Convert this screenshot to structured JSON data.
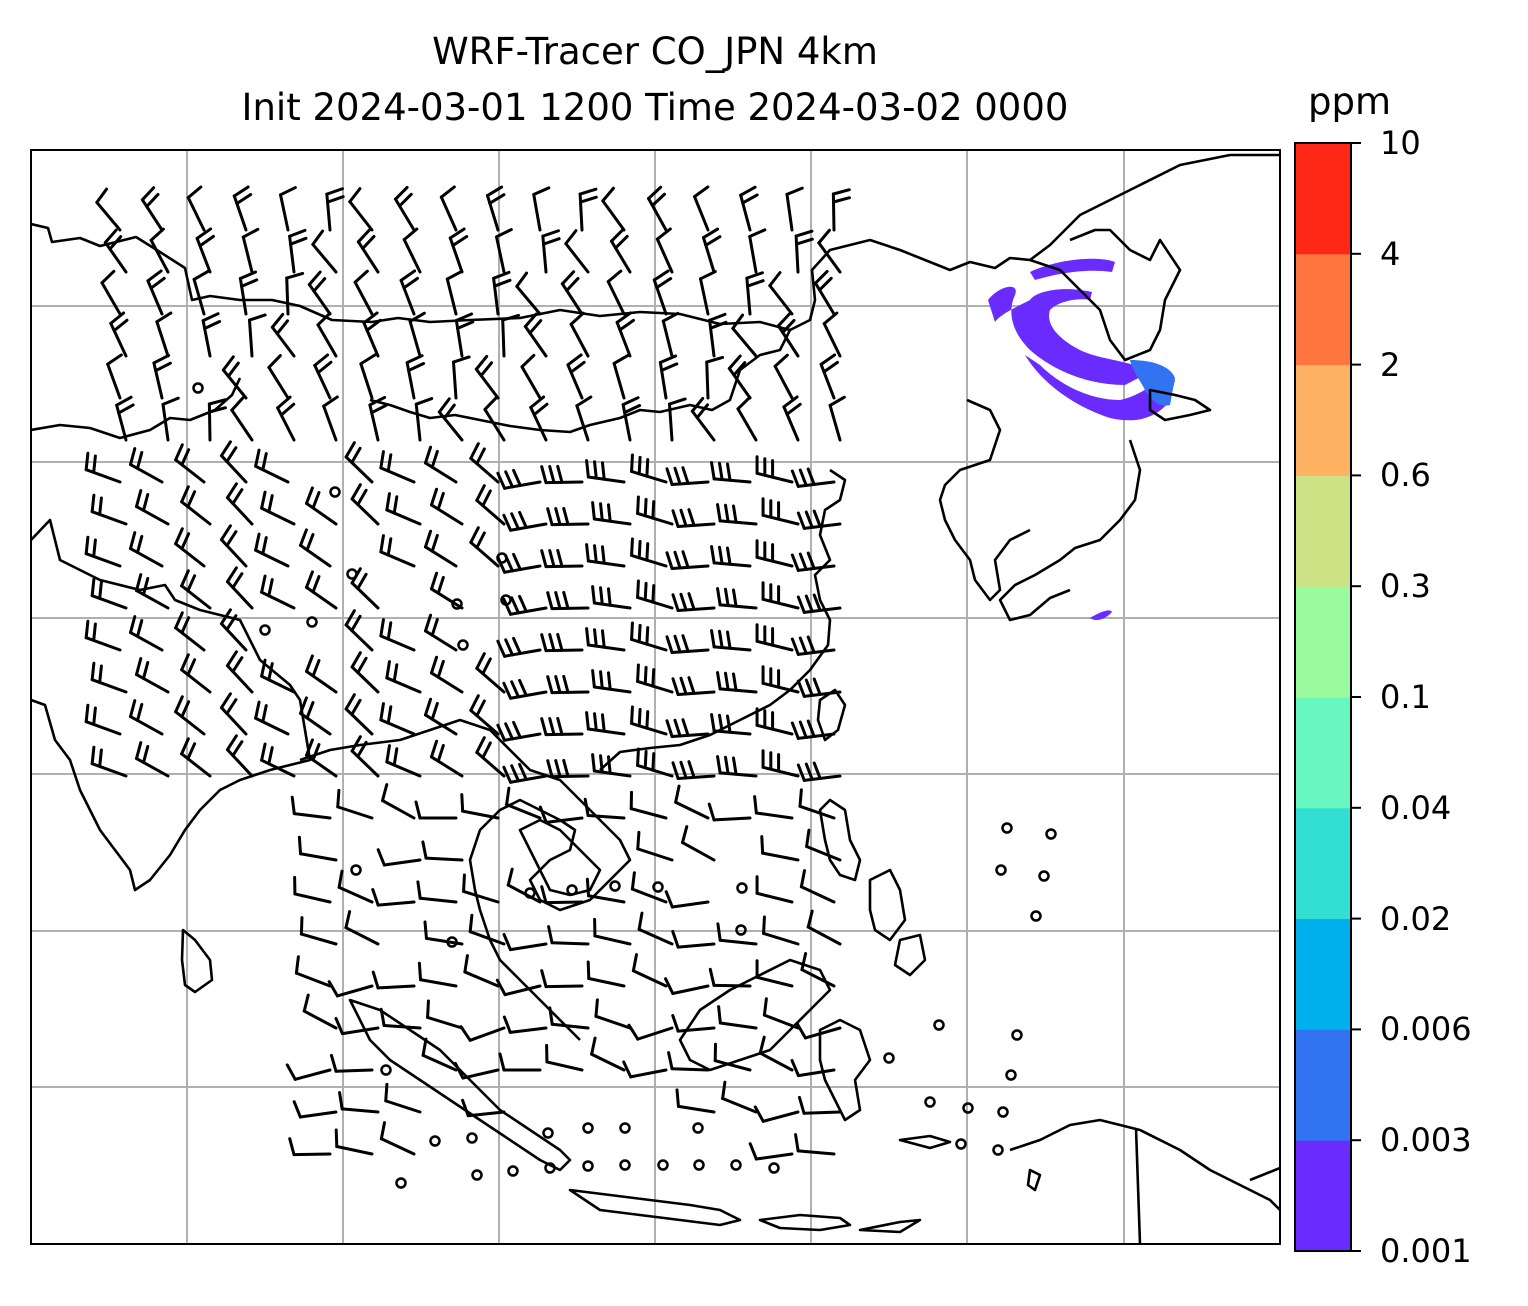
{
  "title": {
    "line1": "WRF-Tracer CO_JPN 4km",
    "line2": "Init 2024-03-01 1200 Time 2024-03-02 0000"
  },
  "colorbar": {
    "unit": "ppm",
    "levels": [
      "0.001",
      "0.003",
      "0.006",
      "0.02",
      "0.04",
      "0.1",
      "0.3",
      "0.6",
      "2",
      "4",
      "10"
    ],
    "colors": [
      "#6a2bff",
      "#3273f2",
      "#00b0ec",
      "#33dfd3",
      "#68f8bf",
      "#9bfa9d",
      "#cce285",
      "#fdb264",
      "#ff7540",
      "#ff2816"
    ]
  },
  "map": {
    "features": [
      "coastlines",
      "borders",
      "gridlines",
      "wind-barbs",
      "co-tracer-plume"
    ],
    "gridline_color": "#b0b0b0",
    "plume_colors": [
      "#6a2bff",
      "#3273f2"
    ]
  }
}
